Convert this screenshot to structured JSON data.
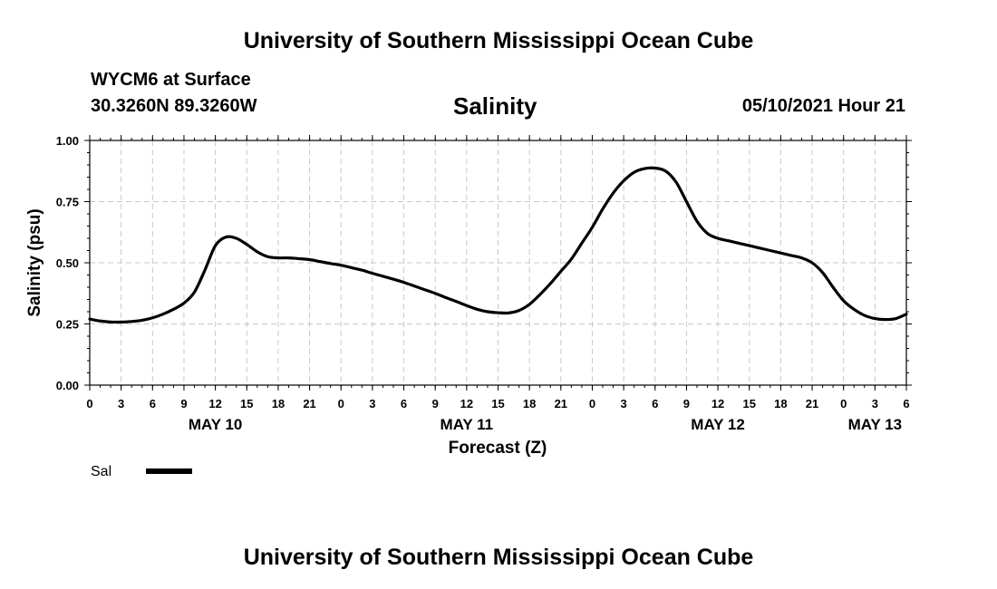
{
  "header": {
    "top_title": "University of Southern Mississippi Ocean Cube",
    "station": "WYCM6 at Surface",
    "coords": "30.3260N  89.3260W",
    "timestamp": "05/10/2021 Hour 21",
    "bottom_title": "University of Southern Mississippi Ocean Cube"
  },
  "chart_data": {
    "type": "line",
    "title": "Salinity",
    "xlabel": "Forecast (Z)",
    "ylabel": "Salinity (psu)",
    "xunit": "hours from May 10 00Z",
    "xlim": [
      0,
      78
    ],
    "ylim": [
      0,
      1
    ],
    "grid": true,
    "yticks": [
      0,
      0.25,
      0.5,
      0.75,
      1.0
    ],
    "ytick_labels": [
      "0.00",
      "0.25",
      "0.50",
      "0.75",
      "1.00"
    ],
    "xticks": [
      0,
      3,
      6,
      9,
      12,
      15,
      18,
      21,
      24,
      27,
      30,
      33,
      36,
      39,
      42,
      45,
      48,
      51,
      54,
      57,
      60,
      63,
      66,
      69,
      72,
      75,
      78
    ],
    "xtick_labels": [
      "0",
      "3",
      "6",
      "9",
      "12",
      "15",
      "18",
      "21",
      "0",
      "3",
      "6",
      "9",
      "12",
      "15",
      "18",
      "21",
      "0",
      "3",
      "6",
      "9",
      "12",
      "15",
      "18",
      "21",
      "0",
      "3",
      "6"
    ],
    "day_labels": [
      {
        "label": "MAY 10",
        "x": 12
      },
      {
        "label": "MAY 11",
        "x": 36
      },
      {
        "label": "MAY 12",
        "x": 60
      },
      {
        "label": "MAY 13",
        "x": 75
      }
    ],
    "legend": {
      "position": "bottom-left",
      "label": "Sal"
    },
    "series": [
      {
        "name": "Sal",
        "x": [
          0,
          1,
          2,
          3,
          4,
          5,
          6,
          7,
          8,
          9,
          10,
          11,
          12,
          13,
          14,
          15,
          16,
          17,
          18,
          19,
          20,
          21,
          22,
          23,
          24,
          25,
          26,
          27,
          28,
          29,
          30,
          31,
          32,
          33,
          34,
          35,
          36,
          37,
          38,
          39,
          40,
          41,
          42,
          43,
          44,
          45,
          46,
          47,
          48,
          49,
          50,
          51,
          52,
          53,
          54,
          55,
          56,
          57,
          58,
          59,
          60,
          61,
          62,
          63,
          64,
          65,
          66,
          67,
          68,
          69,
          70,
          71,
          72,
          73,
          74,
          75,
          76,
          77,
          78
        ],
        "values": [
          0.27,
          0.262,
          0.258,
          0.258,
          0.26,
          0.265,
          0.275,
          0.29,
          0.31,
          0.335,
          0.38,
          0.47,
          0.57,
          0.605,
          0.6,
          0.575,
          0.545,
          0.525,
          0.52,
          0.52,
          0.517,
          0.513,
          0.505,
          0.497,
          0.49,
          0.48,
          0.47,
          0.457,
          0.445,
          0.433,
          0.42,
          0.405,
          0.39,
          0.375,
          0.358,
          0.342,
          0.325,
          0.31,
          0.3,
          0.296,
          0.295,
          0.305,
          0.33,
          0.37,
          0.415,
          0.465,
          0.515,
          0.58,
          0.645,
          0.72,
          0.785,
          0.835,
          0.87,
          0.885,
          0.887,
          0.875,
          0.83,
          0.75,
          0.67,
          0.62,
          0.6,
          0.59,
          0.58,
          0.57,
          0.56,
          0.55,
          0.54,
          0.53,
          0.52,
          0.5,
          0.46,
          0.4,
          0.345,
          0.31,
          0.285,
          0.272,
          0.268,
          0.272,
          0.29
        ]
      }
    ]
  }
}
